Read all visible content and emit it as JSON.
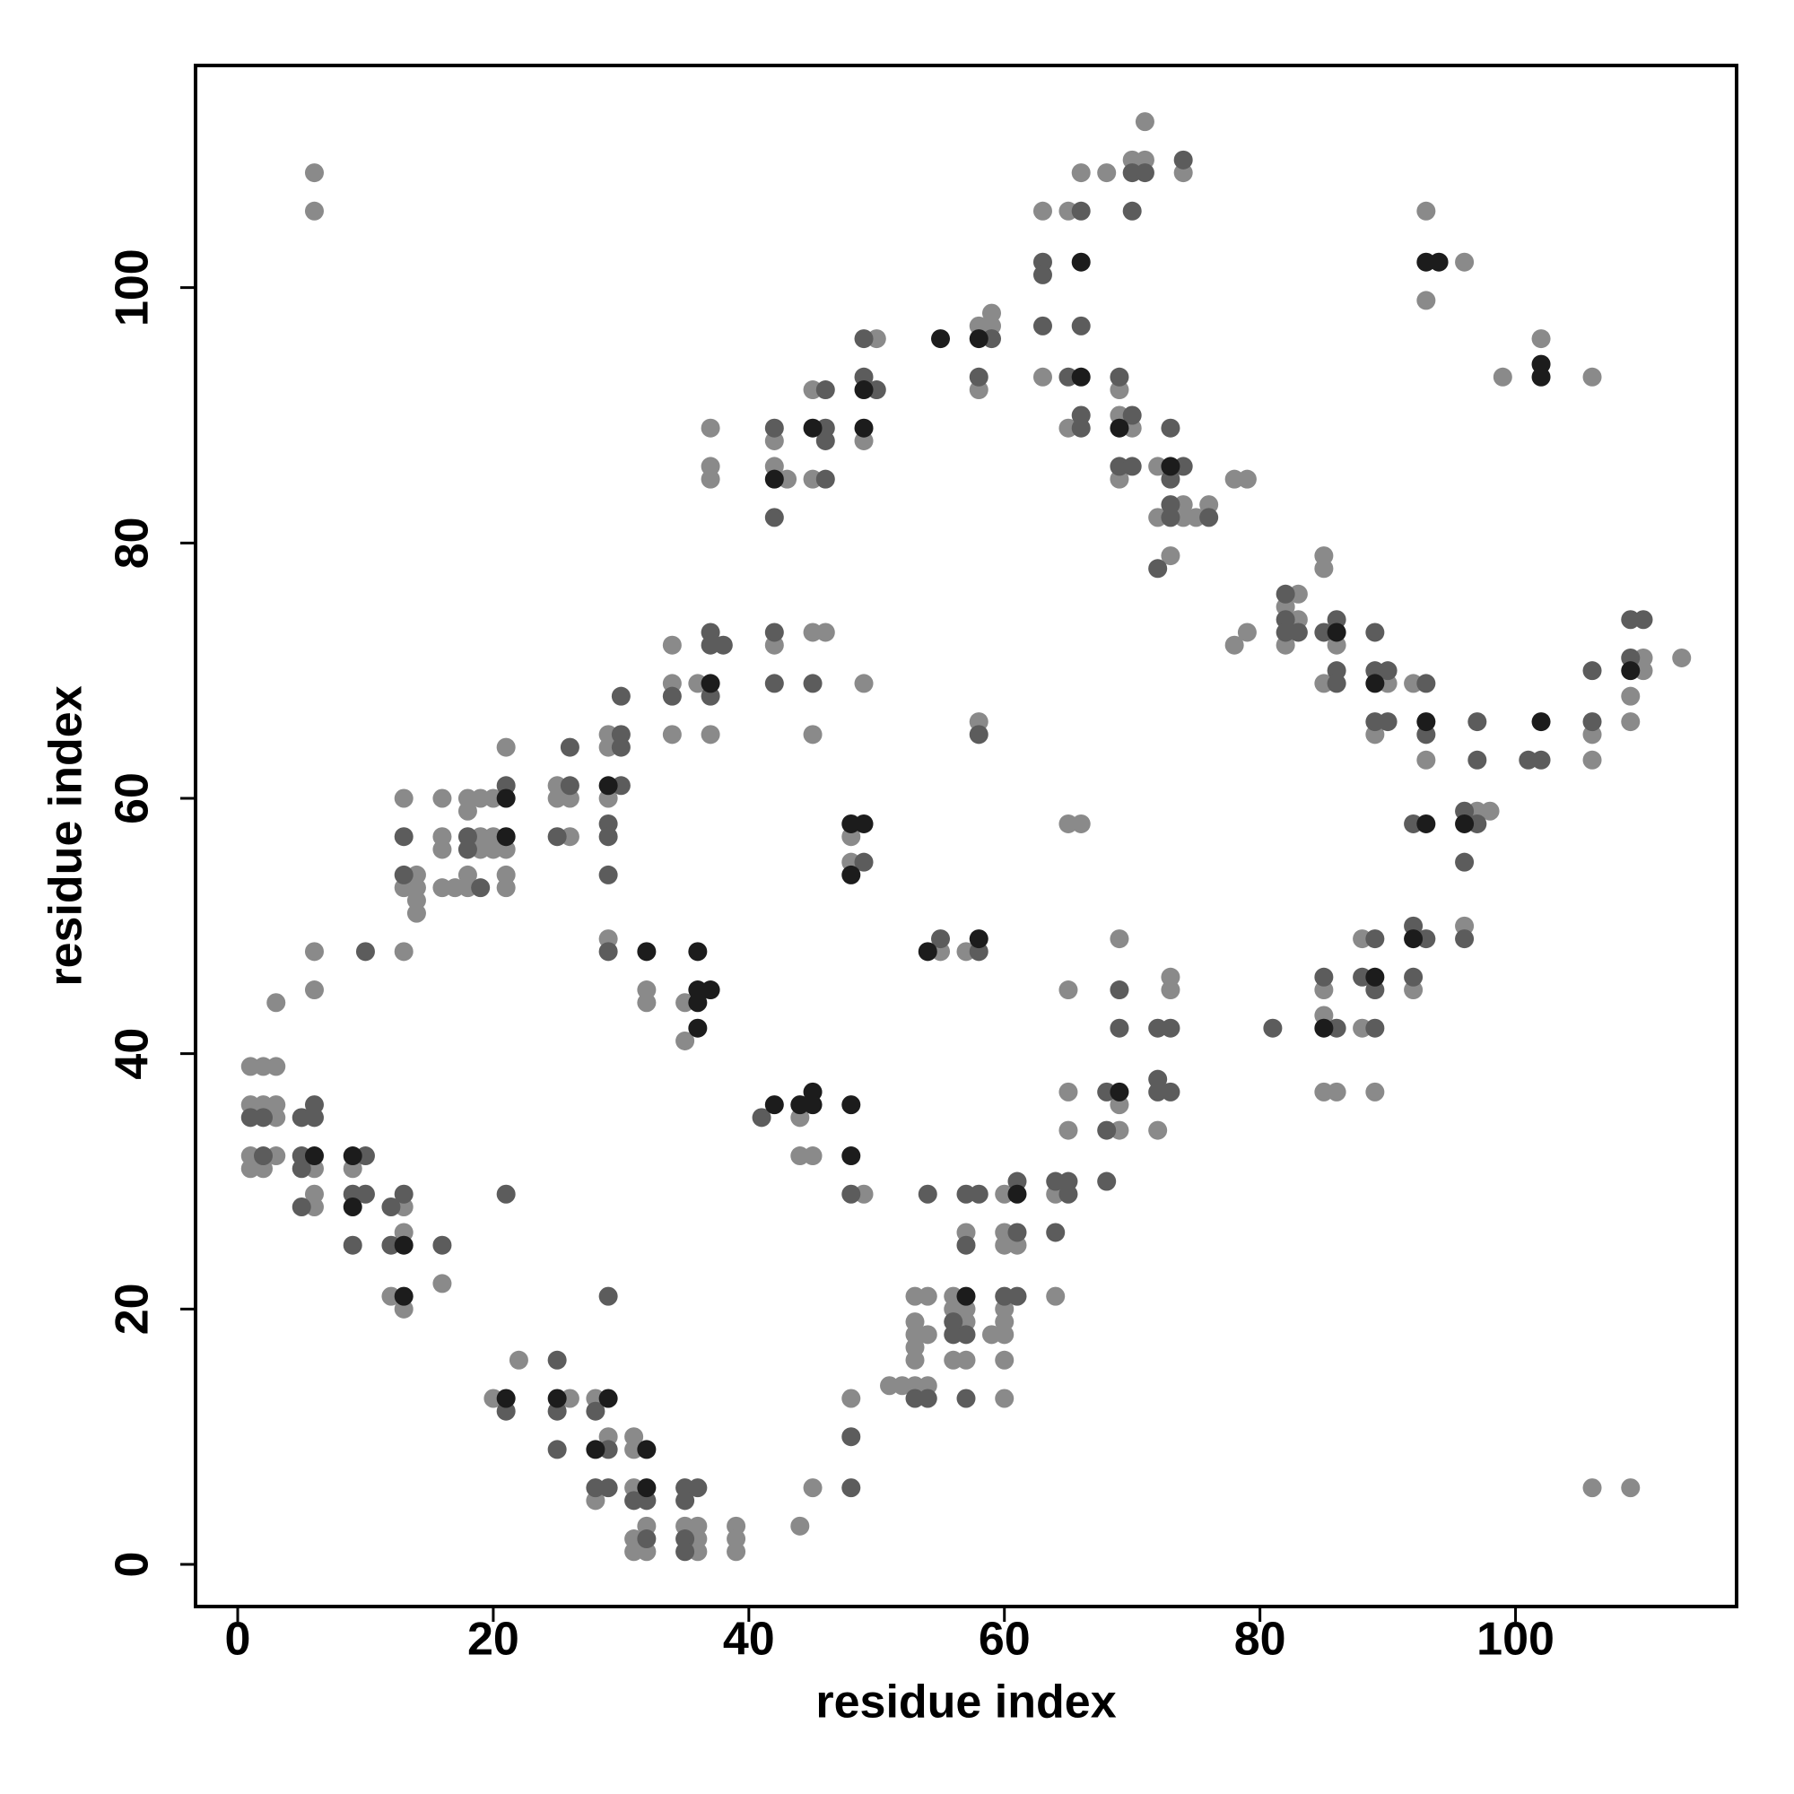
{
  "chart_data": {
    "type": "scatter",
    "xlabel": "residue index",
    "ylabel": "residue index",
    "xlim": [
      -3.3,
      117.3
    ],
    "ylim": [
      -3.3,
      117.4
    ],
    "xticks": [
      0,
      20,
      40,
      60,
      80,
      100
    ],
    "yticks": [
      0,
      20,
      40,
      60,
      80,
      100
    ],
    "series": [
      {
        "color": "#8a8a8a",
        "x": [
          6,
          6,
          1,
          2,
          3,
          1,
          2,
          3,
          3,
          1,
          3,
          1,
          2,
          3,
          6,
          6,
          6,
          6,
          6,
          9,
          13,
          13,
          12,
          13,
          13,
          16,
          13,
          14,
          13,
          14,
          14,
          14,
          16,
          16,
          16,
          16,
          17,
          18,
          18,
          18,
          18,
          19,
          19,
          19,
          20,
          20,
          20,
          21,
          21,
          21,
          21,
          25,
          25,
          26,
          26,
          29,
          29,
          29,
          29,
          20,
          22,
          26,
          28,
          29,
          28,
          31,
          31,
          31,
          32,
          31,
          31,
          32,
          35,
          36,
          36,
          36,
          39,
          39,
          39,
          32,
          32,
          35,
          35,
          34,
          34,
          34,
          36,
          37,
          37,
          37,
          37,
          42,
          42,
          43,
          42,
          45,
          45,
          45,
          46,
          45,
          50,
          49,
          49,
          48,
          48,
          44,
          44,
          45,
          49,
          44,
          45,
          48,
          51,
          52,
          53,
          54,
          53,
          54,
          53,
          53,
          54,
          53,
          53,
          56,
          56,
          57,
          57,
          56,
          57,
          57,
          59,
          60,
          60,
          60,
          60,
          60,
          60,
          60,
          60,
          61,
          64,
          64,
          55,
          57,
          58,
          58,
          59,
          59,
          58,
          63,
          63,
          65,
          66,
          65,
          68,
          70,
          71,
          71,
          74,
          69,
          69,
          70,
          69,
          72,
          72,
          74,
          74,
          75,
          76,
          73,
          78,
          79,
          65,
          66,
          65,
          69,
          65,
          65,
          69,
          69,
          73,
          73,
          72,
          78,
          79,
          83,
          82,
          83,
          82,
          85,
          85,
          86,
          85,
          90,
          89,
          92,
          93,
          97,
          98,
          96,
          85,
          85,
          85,
          86,
          88,
          88,
          89,
          92,
          106,
          106,
          110,
          110,
          109,
          109,
          113,
          93,
          96,
          93,
          99,
          102,
          106,
          106,
          109
        ],
        "values": [
          109,
          106,
          39,
          39,
          39,
          36,
          36,
          36,
          35,
          32,
          32,
          31,
          31,
          44,
          31,
          29,
          28,
          45,
          48,
          31,
          28,
          26,
          21,
          20,
          48,
          22,
          60,
          54,
          53,
          53,
          52,
          51,
          60,
          57,
          56,
          53,
          53,
          60,
          59,
          54,
          53,
          60,
          57,
          56,
          60,
          57,
          56,
          64,
          56,
          54,
          53,
          61,
          60,
          60,
          57,
          65,
          64,
          60,
          49,
          13,
          16,
          13,
          13,
          10,
          5,
          10,
          9,
          6,
          3,
          2,
          1,
          1,
          3,
          3,
          2,
          1,
          3,
          2,
          1,
          45,
          44,
          44,
          41,
          72,
          69,
          65,
          69,
          65,
          89,
          86,
          85,
          88,
          86,
          85,
          72,
          92,
          85,
          73,
          73,
          65,
          96,
          88,
          69,
          57,
          55,
          35,
          32,
          32,
          29,
          3,
          6,
          13,
          14,
          14,
          14,
          14,
          21,
          21,
          19,
          18,
          18,
          17,
          16,
          21,
          20,
          20,
          19,
          16,
          16,
          26,
          18,
          18,
          19,
          20,
          16,
          13,
          29,
          26,
          25,
          25,
          29,
          21,
          48,
          48,
          66,
          97,
          98,
          97,
          92,
          93,
          106,
          106,
          109,
          89,
          109,
          110,
          110,
          113,
          109,
          92,
          90,
          89,
          85,
          86,
          82,
          83,
          82,
          82,
          83,
          79,
          85,
          85,
          58,
          58,
          45,
          49,
          37,
          34,
          36,
          34,
          46,
          45,
          34,
          72,
          73,
          76,
          75,
          74,
          72,
          79,
          78,
          72,
          69,
          69,
          65,
          69,
          63,
          59,
          59,
          50,
          45,
          43,
          37,
          37,
          49,
          42,
          37,
          45,
          65,
          63,
          71,
          70,
          68,
          66,
          71,
          106,
          102,
          99,
          93,
          96,
          93,
          6,
          6
        ]
      },
      {
        "color": "#5c5c5c",
        "x": [
          1,
          2,
          2,
          5,
          6,
          6,
          5,
          5,
          5,
          10,
          9,
          10,
          9,
          10,
          12,
          13,
          12,
          16,
          13,
          13,
          18,
          18,
          19,
          21,
          26,
          25,
          26,
          30,
          30,
          30,
          29,
          29,
          29,
          30,
          29,
          29,
          21,
          21,
          25,
          25,
          25,
          28,
          29,
          28,
          29,
          31,
          32,
          32,
          35,
          36,
          35,
          35,
          35,
          34,
          37,
          37,
          38,
          37,
          42,
          42,
          42,
          42,
          46,
          46,
          46,
          46,
          45,
          49,
          49,
          50,
          49,
          41,
          48,
          48,
          48,
          53,
          54,
          56,
          56,
          57,
          57,
          57,
          57,
          58,
          54,
          60,
          61,
          61,
          61,
          64,
          65,
          65,
          64,
          55,
          58,
          58,
          59,
          58,
          63,
          63,
          63,
          66,
          66,
          65,
          66,
          66,
          70,
          71,
          70,
          74,
          69,
          70,
          69,
          70,
          74,
          73,
          73,
          73,
          73,
          76,
          72,
          69,
          69,
          68,
          68,
          68,
          72,
          73,
          72,
          72,
          73,
          82,
          82,
          82,
          83,
          85,
          86,
          86,
          86,
          89,
          89,
          90,
          89,
          90,
          93,
          93,
          92,
          97,
          97,
          96,
          97,
          96,
          96,
          81,
          85,
          86,
          88,
          89,
          89,
          89,
          92,
          93,
          92,
          101,
          102,
          106,
          106,
          109,
          110,
          109
        ],
        "values": [
          35,
          35,
          32,
          35,
          36,
          35,
          32,
          31,
          28,
          32,
          29,
          29,
          25,
          48,
          28,
          29,
          25,
          25,
          57,
          54,
          57,
          56,
          53,
          61,
          61,
          57,
          64,
          65,
          64,
          61,
          58,
          57,
          54,
          68,
          48,
          21,
          29,
          12,
          16,
          12,
          9,
          12,
          9,
          6,
          6,
          5,
          5,
          2,
          6,
          6,
          5,
          2,
          1,
          68,
          73,
          72,
          72,
          68,
          89,
          82,
          73,
          69,
          92,
          89,
          88,
          85,
          69,
          96,
          93,
          92,
          55,
          35,
          29,
          10,
          6,
          13,
          13,
          19,
          18,
          18,
          13,
          25,
          29,
          29,
          29,
          21,
          21,
          30,
          26,
          30,
          30,
          29,
          26,
          49,
          48,
          65,
          96,
          93,
          102,
          101,
          97,
          106,
          97,
          93,
          90,
          89,
          109,
          109,
          106,
          110,
          93,
          90,
          86,
          86,
          86,
          85,
          89,
          83,
          82,
          82,
          78,
          45,
          42,
          37,
          34,
          30,
          42,
          42,
          38,
          37,
          37,
          76,
          74,
          73,
          73,
          73,
          74,
          70,
          69,
          73,
          70,
          70,
          66,
          66,
          69,
          65,
          58,
          66,
          63,
          59,
          58,
          55,
          49,
          42,
          46,
          42,
          46,
          49,
          42,
          45,
          50,
          49,
          46,
          63,
          63,
          70,
          66,
          74,
          74,
          71
        ]
      },
      {
        "color": "#1c1c1c",
        "x": [
          6,
          9,
          9,
          13,
          13,
          21,
          21,
          29,
          21,
          25,
          29,
          28,
          32,
          32,
          32,
          36,
          36,
          37,
          36,
          36,
          37,
          42,
          45,
          49,
          49,
          48,
          49,
          48,
          42,
          44,
          45,
          45,
          48,
          48,
          57,
          61,
          54,
          58,
          55,
          58,
          66,
          66,
          69,
          73,
          69,
          86,
          89,
          93,
          93,
          96,
          85,
          89,
          92,
          102,
          109,
          93,
          94,
          102,
          102
        ],
        "values": [
          32,
          32,
          28,
          25,
          21,
          60,
          57,
          61,
          13,
          13,
          13,
          9,
          9,
          6,
          48,
          48,
          45,
          45,
          44,
          42,
          69,
          85,
          89,
          92,
          89,
          58,
          58,
          54,
          36,
          36,
          37,
          36,
          36,
          32,
          21,
          29,
          48,
          49,
          96,
          96,
          102,
          93,
          89,
          86,
          37,
          73,
          69,
          66,
          58,
          58,
          42,
          46,
          49,
          66,
          70,
          102,
          102,
          94,
          93
        ]
      }
    ]
  }
}
